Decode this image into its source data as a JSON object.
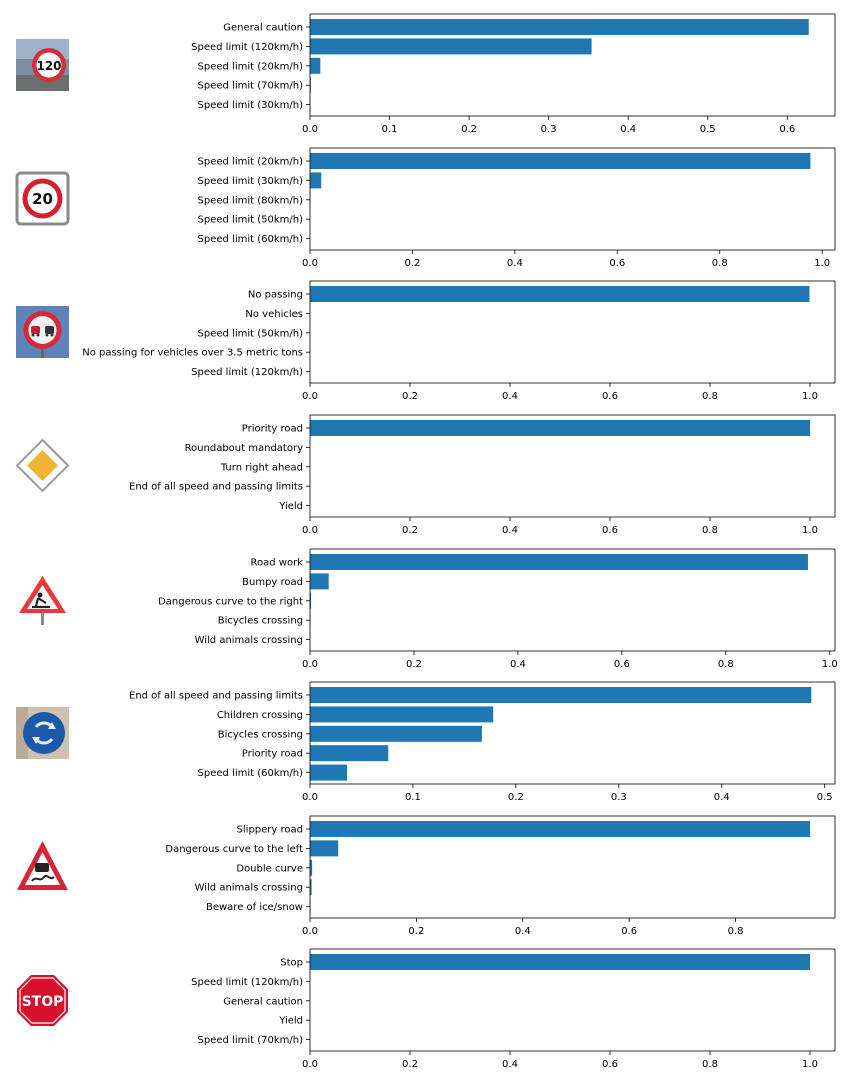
{
  "chart_data": [
    {
      "type": "bar",
      "orientation": "horizontal",
      "sign_icon": "speed-limit-120-sign-icon",
      "categories": [
        "General caution",
        "Speed limit (120km/h)",
        "Speed limit (20km/h)",
        "Speed limit (70km/h)",
        "Speed limit (30km/h)"
      ],
      "values": [
        0.627,
        0.354,
        0.013,
        0.001,
        0.0005
      ],
      "xlim": [
        0,
        0.66
      ],
      "xticks": [
        "0.0",
        "0.1",
        "0.2",
        "0.3",
        "0.4",
        "0.5",
        "0.6"
      ],
      "xtick_values": [
        0,
        0.1,
        0.2,
        0.3,
        0.4,
        0.5,
        0.6
      ],
      "bar_color": "#1f77b4"
    },
    {
      "type": "bar",
      "orientation": "horizontal",
      "sign_icon": "speed-limit-20-sign-icon",
      "categories": [
        "Speed limit (20km/h)",
        "Speed limit (30km/h)",
        "Speed limit (80km/h)",
        "Speed limit (50km/h)",
        "Speed limit (60km/h)"
      ],
      "values": [
        0.977,
        0.022,
        0.0008,
        0.0004,
        0.0002
      ],
      "xlim": [
        0,
        1.025
      ],
      "xticks": [
        "0.0",
        "0.2",
        "0.4",
        "0.6",
        "0.8",
        "1.0"
      ],
      "xtick_values": [
        0,
        0.2,
        0.4,
        0.6,
        0.8,
        1.0
      ],
      "bar_color": "#1f77b4"
    },
    {
      "type": "bar",
      "orientation": "horizontal",
      "sign_icon": "no-passing-sign-icon",
      "categories": [
        "No passing",
        "No vehicles",
        "Speed limit (50km/h)",
        "No passing for vehicles over 3.5 metric tons",
        "Speed limit (120km/h)"
      ],
      "values": [
        0.999,
        0.0004,
        0.0002,
        0.0001,
        0.0001
      ],
      "xlim": [
        0,
        1.05
      ],
      "xticks": [
        "0.0",
        "0.2",
        "0.4",
        "0.6",
        "0.8",
        "1.0"
      ],
      "xtick_values": [
        0,
        0.2,
        0.4,
        0.6,
        0.8,
        1.0
      ],
      "bar_color": "#1f77b4"
    },
    {
      "type": "bar",
      "orientation": "horizontal",
      "sign_icon": "priority-road-sign-icon",
      "categories": [
        "Priority road",
        "Roundabout mandatory",
        "Turn right ahead",
        "End of all speed and passing limits",
        "Yield"
      ],
      "values": [
        1.0,
        0.0002,
        0.0001,
        0.0001,
        0.0001
      ],
      "xlim": [
        0,
        1.05
      ],
      "xticks": [
        "0.0",
        "0.2",
        "0.4",
        "0.6",
        "0.8",
        "1.0"
      ],
      "xtick_values": [
        0,
        0.2,
        0.4,
        0.6,
        0.8,
        1.0
      ],
      "bar_color": "#1f77b4"
    },
    {
      "type": "bar",
      "orientation": "horizontal",
      "sign_icon": "road-work-sign-icon",
      "categories": [
        "Road work",
        "Bumpy road",
        "Dangerous curve to the right",
        "Bicycles crossing",
        "Wild animals crossing"
      ],
      "values": [
        0.958,
        0.036,
        0.002,
        0.001,
        0.0005
      ],
      "xlim": [
        0,
        1.01
      ],
      "xticks": [
        "0.0",
        "0.2",
        "0.4",
        "0.6",
        "0.8",
        "1.0"
      ],
      "xtick_values": [
        0,
        0.2,
        0.4,
        0.6,
        0.8,
        1.0
      ],
      "bar_color": "#1f77b4"
    },
    {
      "type": "bar",
      "orientation": "horizontal",
      "sign_icon": "roundabout-mandatory-sign-icon",
      "categories": [
        "End of all speed and passing limits",
        "Children crossing",
        "Bicycles crossing",
        "Priority road",
        "Speed limit (60km/h)"
      ],
      "values": [
        0.487,
        0.178,
        0.167,
        0.076,
        0.036
      ],
      "xlim": [
        0,
        0.51
      ],
      "xticks": [
        "0.0",
        "0.1",
        "0.2",
        "0.3",
        "0.4",
        "0.5"
      ],
      "xtick_values": [
        0,
        0.1,
        0.2,
        0.3,
        0.4,
        0.5
      ],
      "bar_color": "#1f77b4"
    },
    {
      "type": "bar",
      "orientation": "horizontal",
      "sign_icon": "slippery-road-sign-icon",
      "categories": [
        "Slippery road",
        "Dangerous curve to the left",
        "Double curve",
        "Wild animals crossing",
        "Beware of ice/snow"
      ],
      "values": [
        0.94,
        0.053,
        0.004,
        0.003,
        0.001
      ],
      "xlim": [
        0,
        0.987
      ],
      "xticks": [
        "0.0",
        "0.2",
        "0.4",
        "0.6",
        "0.8"
      ],
      "xtick_values": [
        0,
        0.2,
        0.4,
        0.6,
        0.8
      ],
      "bar_color": "#1f77b4"
    },
    {
      "type": "bar",
      "orientation": "horizontal",
      "sign_icon": "stop-sign-icon",
      "categories": [
        "Stop",
        "Speed limit (120km/h)",
        "General caution",
        "Yield",
        "Speed limit (70km/h)"
      ],
      "values": [
        1.0,
        0.0002,
        0.0001,
        0.0001,
        0.0001
      ],
      "xlim": [
        0,
        1.05
      ],
      "xticks": [
        "0.0",
        "0.2",
        "0.4",
        "0.6",
        "0.8",
        "1.0"
      ],
      "xtick_values": [
        0,
        0.2,
        0.4,
        0.6,
        0.8,
        1.0
      ],
      "bar_color": "#1f77b4"
    }
  ],
  "icons": {
    "speed120_text": "120",
    "speed20_text": "20",
    "stop_text": "STOP"
  }
}
